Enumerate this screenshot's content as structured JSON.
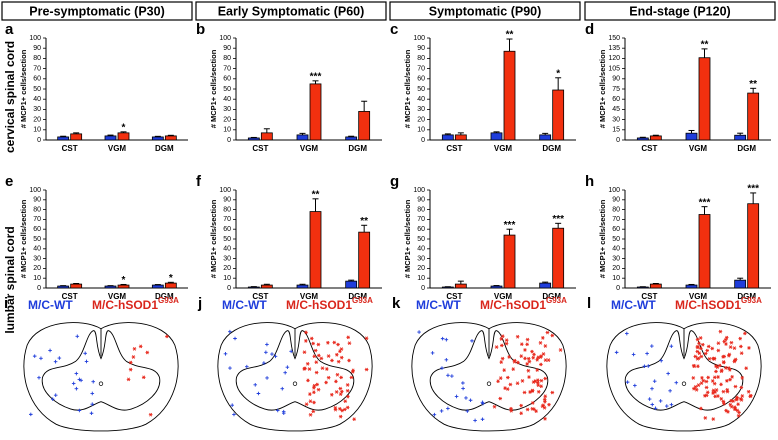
{
  "column_titles": [
    "Pre-symptomatic (P30)",
    "Early Symptomatic (P60)",
    "Symptomatic (P90)",
    "End-stage (P120)"
  ],
  "row_labels": [
    "cervical spinal cord",
    "lumbar spinal cord"
  ],
  "chart_data": [
    {
      "type": "bar",
      "panel": "a",
      "ylabel": "# MCP1+ cells/section",
      "categories": [
        "CST",
        "VGM",
        "DGM"
      ],
      "series": [
        {
          "color": "#1f3ddb",
          "values": [
            3,
            4,
            3
          ],
          "errors": [
            0.7,
            0.8,
            0.6
          ],
          "annotations": [
            null,
            null,
            null
          ]
        },
        {
          "color": "#f2300f",
          "values": [
            6,
            7,
            4
          ],
          "errors": [
            1,
            1,
            0.6
          ],
          "annotations": [
            null,
            "*",
            null
          ]
        }
      ],
      "ylim": [
        0,
        100
      ],
      "yticks": [
        0,
        10,
        20,
        30,
        40,
        50,
        60,
        70,
        80,
        90,
        100
      ]
    },
    {
      "type": "bar",
      "panel": "b",
      "ylabel": "# MCP1+ cells/section",
      "categories": [
        "CST",
        "VGM",
        "DGM"
      ],
      "series": [
        {
          "color": "#1f3ddb",
          "values": [
            2,
            5,
            3
          ],
          "errors": [
            0.5,
            1.5,
            0.7
          ],
          "annotations": [
            null,
            null,
            null
          ]
        },
        {
          "color": "#f2300f",
          "values": [
            7,
            55,
            28
          ],
          "errors": [
            4,
            3,
            10
          ],
          "annotations": [
            null,
            "***",
            null
          ]
        }
      ],
      "ylim": [
        0,
        100
      ],
      "yticks": [
        0,
        10,
        20,
        30,
        40,
        50,
        60,
        70,
        80,
        90,
        100
      ]
    },
    {
      "type": "bar",
      "panel": "c",
      "ylabel": "# MCP1+ cells/section",
      "categories": [
        "CST",
        "VGM",
        "DGM"
      ],
      "series": [
        {
          "color": "#1f3ddb",
          "values": [
            5,
            7,
            5
          ],
          "errors": [
            1,
            1,
            1.5
          ],
          "annotations": [
            null,
            null,
            null
          ]
        },
        {
          "color": "#f2300f",
          "values": [
            5,
            87,
            49
          ],
          "errors": [
            2,
            12,
            12
          ],
          "annotations": [
            null,
            "**",
            "*"
          ]
        }
      ],
      "ylim": [
        0,
        100
      ],
      "yticks": [
        0,
        10,
        20,
        30,
        40,
        50,
        60,
        70,
        80,
        90,
        100
      ]
    },
    {
      "type": "bar",
      "panel": "d",
      "ylabel": "# MCP1+ cells/section",
      "categories": [
        "CST",
        "VGM",
        "DGM"
      ],
      "series": [
        {
          "color": "#1f3ddb",
          "values": [
            3,
            10,
            7
          ],
          "errors": [
            1,
            4,
            3
          ],
          "annotations": [
            null,
            null,
            null
          ]
        },
        {
          "color": "#f2300f",
          "values": [
            6,
            121,
            69
          ],
          "errors": [
            1,
            13,
            7
          ],
          "annotations": [
            null,
            "**",
            "**"
          ]
        }
      ],
      "ylim": [
        0,
        150
      ],
      "yticks": [
        0,
        15,
        30,
        45,
        60,
        75,
        90,
        105,
        120,
        135,
        150
      ]
    },
    {
      "type": "bar",
      "panel": "e",
      "ylabel": "# MCP1+ cells/section",
      "categories": [
        "CST",
        "VGM",
        "DGM"
      ],
      "series": [
        {
          "color": "#1f3ddb",
          "values": [
            2,
            2,
            3
          ],
          "errors": [
            0.4,
            0.4,
            0.5
          ],
          "annotations": [
            null,
            null,
            null
          ]
        },
        {
          "color": "#f2300f",
          "values": [
            4,
            3,
            5
          ],
          "errors": [
            0.6,
            0.6,
            0.8
          ],
          "annotations": [
            null,
            "*",
            "*"
          ]
        }
      ],
      "ylim": [
        0,
        100
      ],
      "yticks": [
        0,
        10,
        20,
        30,
        40,
        50,
        60,
        70,
        80,
        90,
        100
      ]
    },
    {
      "type": "bar",
      "panel": "f",
      "ylabel": "# MCP1+ cells/section",
      "categories": [
        "CST",
        "VGM",
        "DGM"
      ],
      "series": [
        {
          "color": "#1f3ddb",
          "values": [
            1,
            3,
            7
          ],
          "errors": [
            0.4,
            0.8,
            1
          ],
          "annotations": [
            null,
            null,
            null
          ]
        },
        {
          "color": "#f2300f",
          "values": [
            3,
            78,
            57
          ],
          "errors": [
            0.8,
            13,
            7
          ],
          "annotations": [
            null,
            "**",
            "**"
          ]
        }
      ],
      "ylim": [
        0,
        100
      ],
      "yticks": [
        0,
        10,
        20,
        30,
        40,
        50,
        60,
        70,
        80,
        90,
        100
      ]
    },
    {
      "type": "bar",
      "panel": "g",
      "ylabel": "# MCP1+ cells/section",
      "categories": [
        "CST",
        "VGM",
        "DGM"
      ],
      "series": [
        {
          "color": "#1f3ddb",
          "values": [
            1,
            2,
            5
          ],
          "errors": [
            0.3,
            0.5,
            1
          ],
          "annotations": [
            null,
            null,
            null
          ]
        },
        {
          "color": "#f2300f",
          "values": [
            4,
            54,
            61
          ],
          "errors": [
            3,
            6,
            5
          ],
          "annotations": [
            null,
            "***",
            "***"
          ]
        }
      ],
      "ylim": [
        0,
        100
      ],
      "yticks": [
        0,
        10,
        20,
        30,
        40,
        50,
        60,
        70,
        80,
        90,
        100
      ]
    },
    {
      "type": "bar",
      "panel": "h",
      "ylabel": "# MCP1+ cells/section",
      "categories": [
        "CST",
        "VGM",
        "DGM"
      ],
      "series": [
        {
          "color": "#1f3ddb",
          "values": [
            1,
            3,
            8
          ],
          "errors": [
            0.3,
            0.6,
            2
          ],
          "annotations": [
            null,
            null,
            null
          ]
        },
        {
          "color": "#f2300f",
          "values": [
            4,
            75,
            86
          ],
          "errors": [
            0.6,
            8,
            11
          ],
          "annotations": [
            null,
            "***",
            "***"
          ]
        }
      ],
      "ylim": [
        0,
        100
      ],
      "yticks": [
        0,
        10,
        20,
        30,
        40,
        50,
        60,
        70,
        80,
        90,
        100
      ]
    }
  ],
  "diagrams": [
    {
      "panel": "i",
      "wt_label": "M/C-WT",
      "tg_label": "M/C-hSOD1",
      "tg_superscript": "G93A"
    },
    {
      "panel": "j",
      "wt_label": "M/C-WT",
      "tg_label": "M/C-hSOD1",
      "tg_superscript": "G93A"
    },
    {
      "panel": "k",
      "wt_label": "M/C-WT",
      "tg_label": "M/C-hSOD1",
      "tg_superscript": "G93A"
    },
    {
      "panel": "l",
      "wt_label": "M/C-WT",
      "tg_label": "M/C-hSOD1",
      "tg_superscript": "G93A"
    }
  ]
}
